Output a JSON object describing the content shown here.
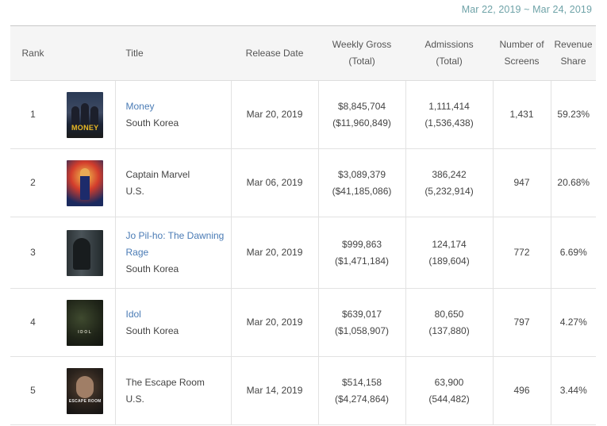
{
  "date_range": "Mar 22, 2019 ~ Mar 24, 2019",
  "headers": {
    "rank": "Rank",
    "title": "Title",
    "release_date": "Release Date",
    "weekly_gross_1": "Weekly Gross",
    "weekly_gross_2": "(Total)",
    "admissions_1": "Admissions",
    "admissions_2": "(Total)",
    "screens_1": "Number of",
    "screens_2": "Screens",
    "share_1": "Revenue",
    "share_2": "Share"
  },
  "rows": [
    {
      "rank": "1",
      "poster_icon": "money-poster-icon",
      "poster_text": "MONEY",
      "title": "Money",
      "title_link": true,
      "country": "South Korea",
      "release_date": "Mar 20, 2019",
      "weekly_gross": "$8,845,704",
      "total_gross": "($11,960,849)",
      "admissions": "1,111,414",
      "total_admissions": "(1,536,438)",
      "screens": "1,431",
      "share": "59.23%"
    },
    {
      "rank": "2",
      "poster_icon": "captain-marvel-poster-icon",
      "poster_text": "",
      "title": "Captain Marvel",
      "title_link": false,
      "country": "U.S.",
      "release_date": "Mar 06, 2019",
      "weekly_gross": "$3,089,379",
      "total_gross": "($41,185,086)",
      "admissions": "386,242",
      "total_admissions": "(5,232,914)",
      "screens": "947",
      "share": "20.68%"
    },
    {
      "rank": "3",
      "poster_icon": "jo-pil-ho-poster-icon",
      "poster_text": "",
      "title": "Jo Pil-ho: The Dawning Rage",
      "title_link": true,
      "country": "South Korea",
      "release_date": "Mar 20, 2019",
      "weekly_gross": "$999,863",
      "total_gross": "($1,471,184)",
      "admissions": "124,174",
      "total_admissions": "(189,604)",
      "screens": "772",
      "share": "6.69%"
    },
    {
      "rank": "4",
      "poster_icon": "idol-poster-icon",
      "poster_text": "IDOL",
      "title": "Idol",
      "title_link": true,
      "country": "South Korea",
      "release_date": "Mar 20, 2019",
      "weekly_gross": "$639,017",
      "total_gross": "($1,058,907)",
      "admissions": "80,650",
      "total_admissions": "(137,880)",
      "screens": "797",
      "share": "4.27%"
    },
    {
      "rank": "5",
      "poster_icon": "escape-room-poster-icon",
      "poster_text": "ESCAPE ROOM",
      "title": "The Escape Room",
      "title_link": false,
      "country": "U.S.",
      "release_date": "Mar 14, 2019",
      "weekly_gross": "$514,158",
      "total_gross": "($4,274,864)",
      "admissions": "63,900",
      "total_admissions": "(544,482)",
      "screens": "496",
      "share": "3.44%"
    }
  ]
}
